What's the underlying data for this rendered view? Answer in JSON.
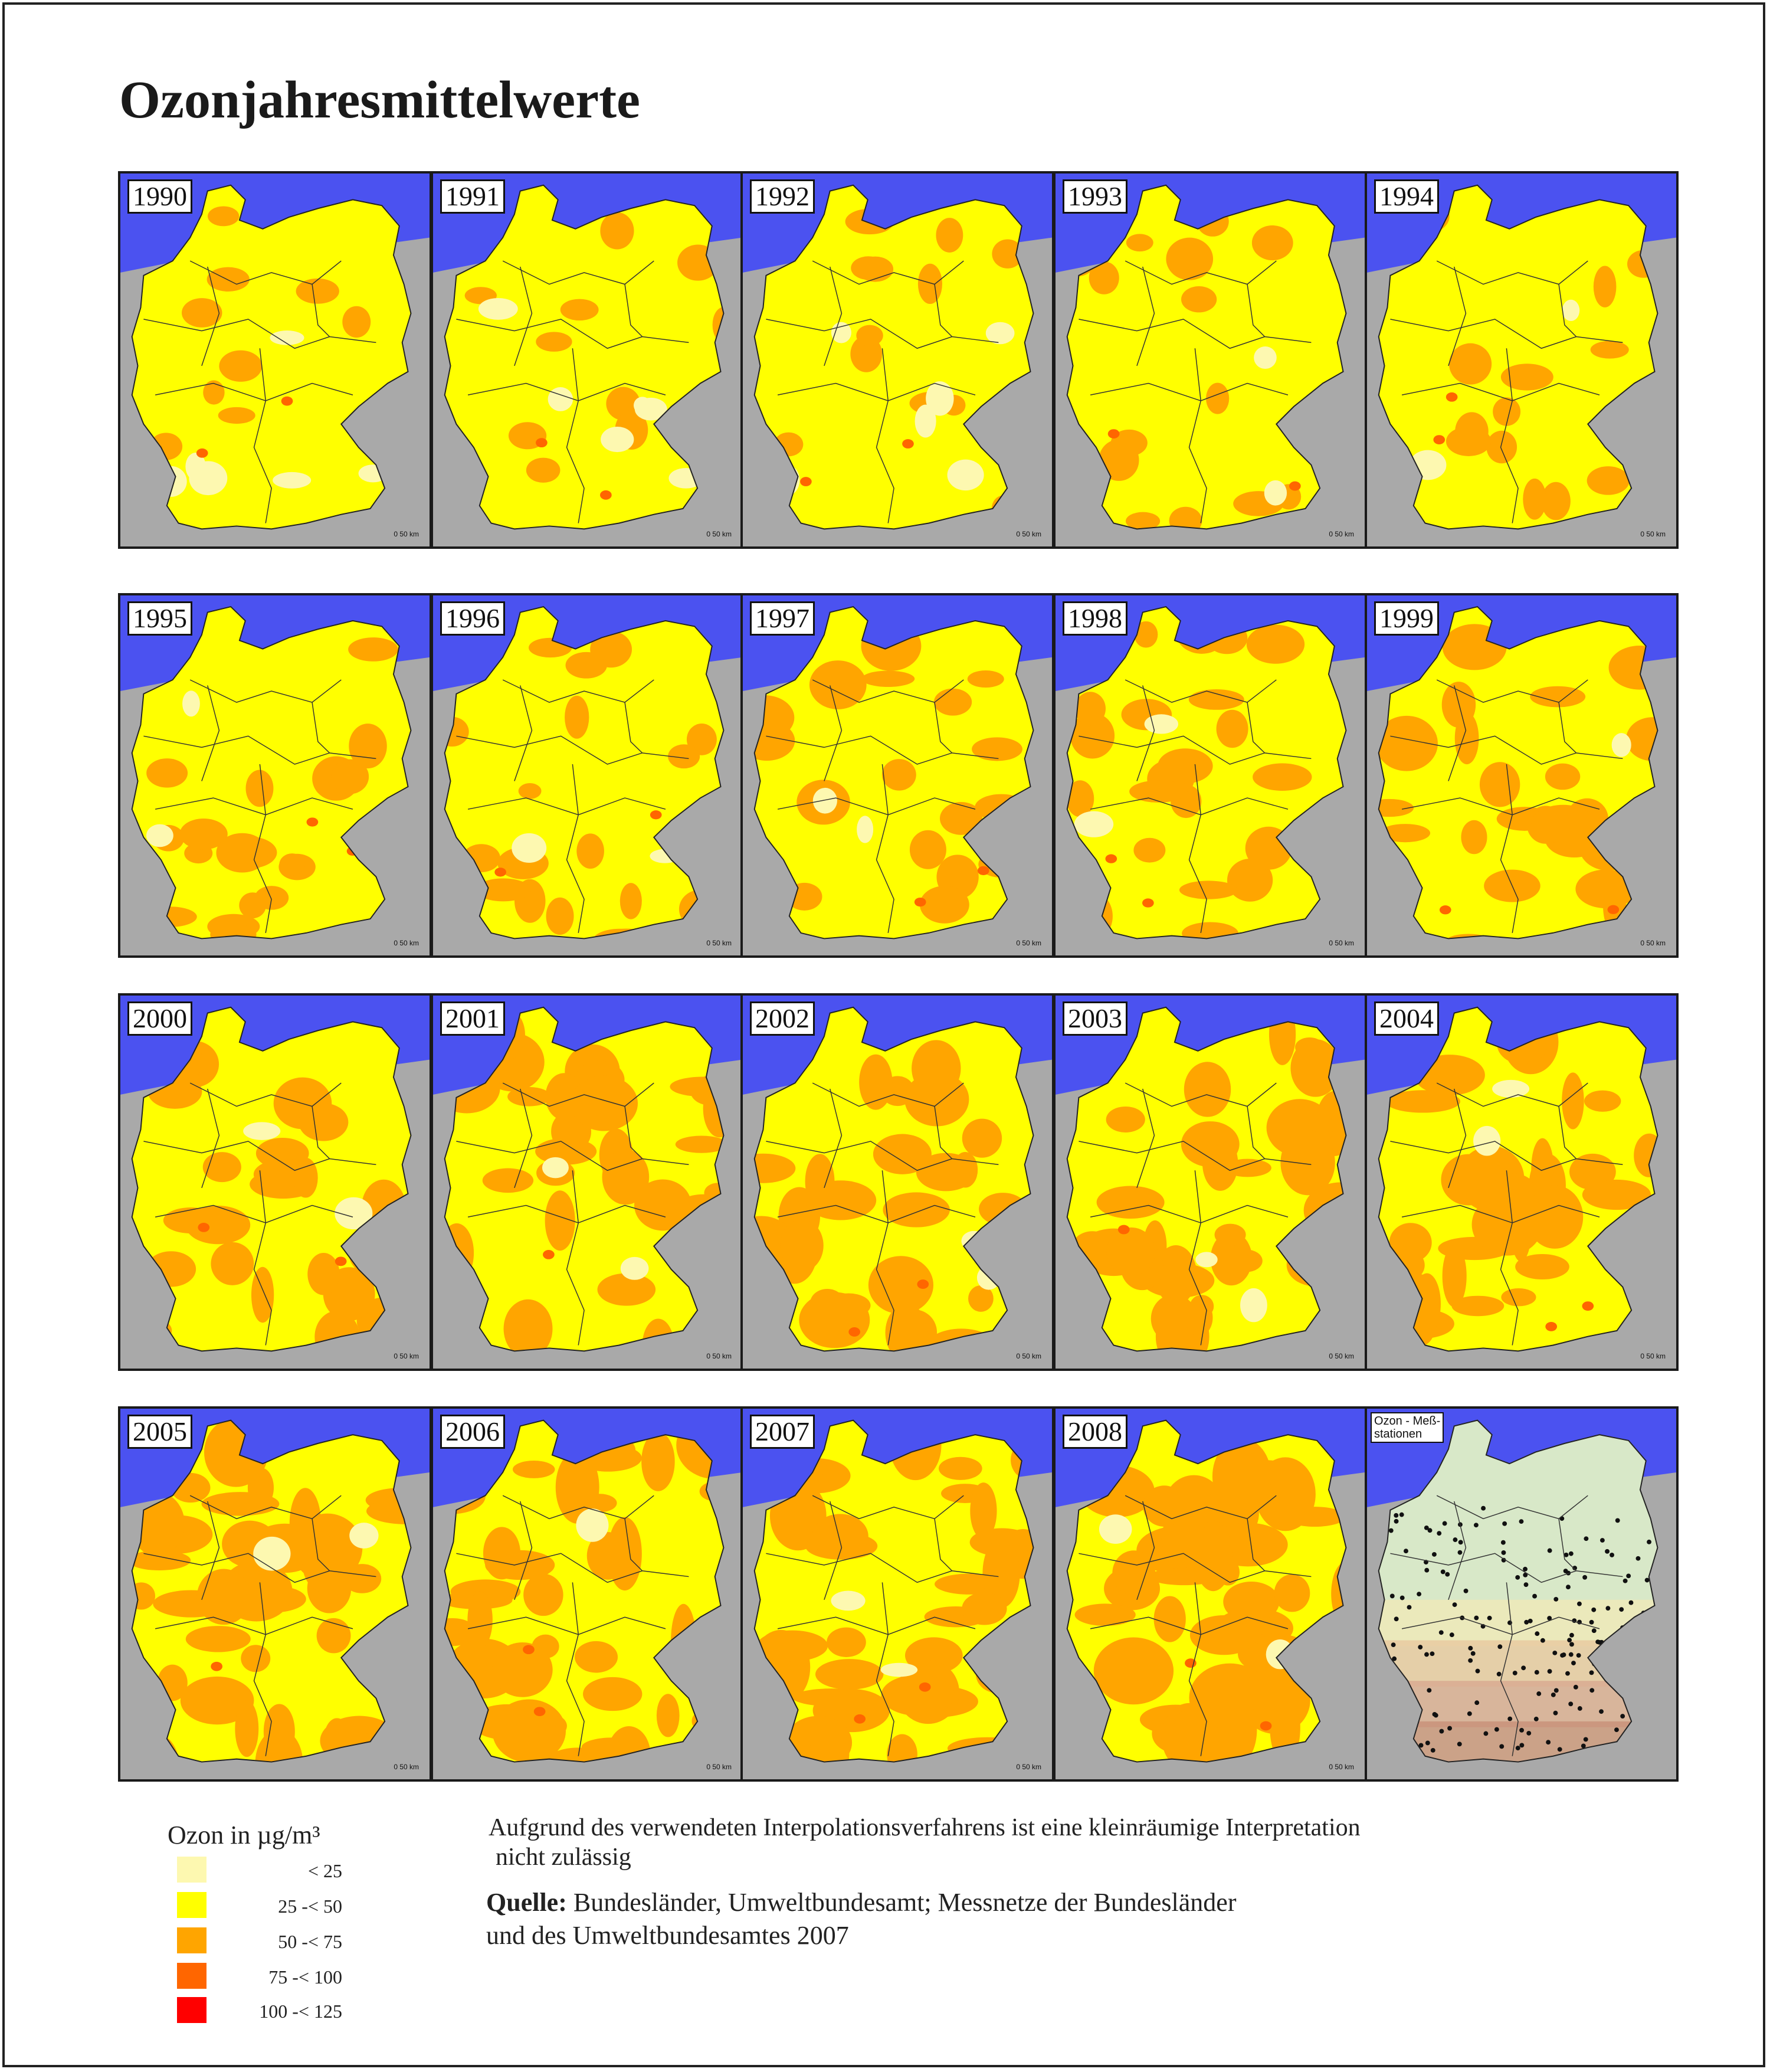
{
  "title": "Ozonjahresmittelwerte",
  "scale_label": "0    50 km",
  "panels": [
    {
      "year": "1990"
    },
    {
      "year": "1991"
    },
    {
      "year": "1992"
    },
    {
      "year": "1993"
    },
    {
      "year": "1994"
    },
    {
      "year": "1995"
    },
    {
      "year": "1996"
    },
    {
      "year": "1997"
    },
    {
      "year": "1998"
    },
    {
      "year": "1999"
    },
    {
      "year": "2000"
    },
    {
      "year": "2001"
    },
    {
      "year": "2002"
    },
    {
      "year": "2003"
    },
    {
      "year": "2004"
    },
    {
      "year": "2005"
    },
    {
      "year": "2006"
    },
    {
      "year": "2007"
    },
    {
      "year": "2008"
    }
  ],
  "station_map": {
    "label_line1": "Ozon - Meß-",
    "label_line2": "stationen"
  },
  "legend": {
    "title": "Ozon in µg/m³",
    "items": [
      {
        "label": "< 25",
        "color": "#fdf8b0"
      },
      {
        "label": "25 -< 50",
        "color": "#ffff00"
      },
      {
        "label": "50 -< 75",
        "color": "#ffa500"
      },
      {
        "label": "75 -< 100",
        "color": "#ff6600"
      },
      {
        "label": "100 -< 125",
        "color": "#ff0000"
      }
    ]
  },
  "note": {
    "line1": "Aufgrund des verwendeten Interpolationsverfahrens ist eine kleinräumige Interpretation",
    "line2": "nicht zulässig"
  },
  "source": {
    "bold": "Quelle:",
    "line1": "Bundesländer, Umweltbundesamt; Messnetze der Bundesländer",
    "line2": "und des Umweltbundesamtes 2007"
  },
  "colors": {
    "sea": "#4b52f0",
    "land_outside": "#a9a9a9",
    "class_lt25": "#fdf8b0",
    "class_25_50": "#ffff00",
    "class_50_75": "#ffa500",
    "class_75_100": "#ff6600",
    "class_100_125": "#ff0000"
  }
}
